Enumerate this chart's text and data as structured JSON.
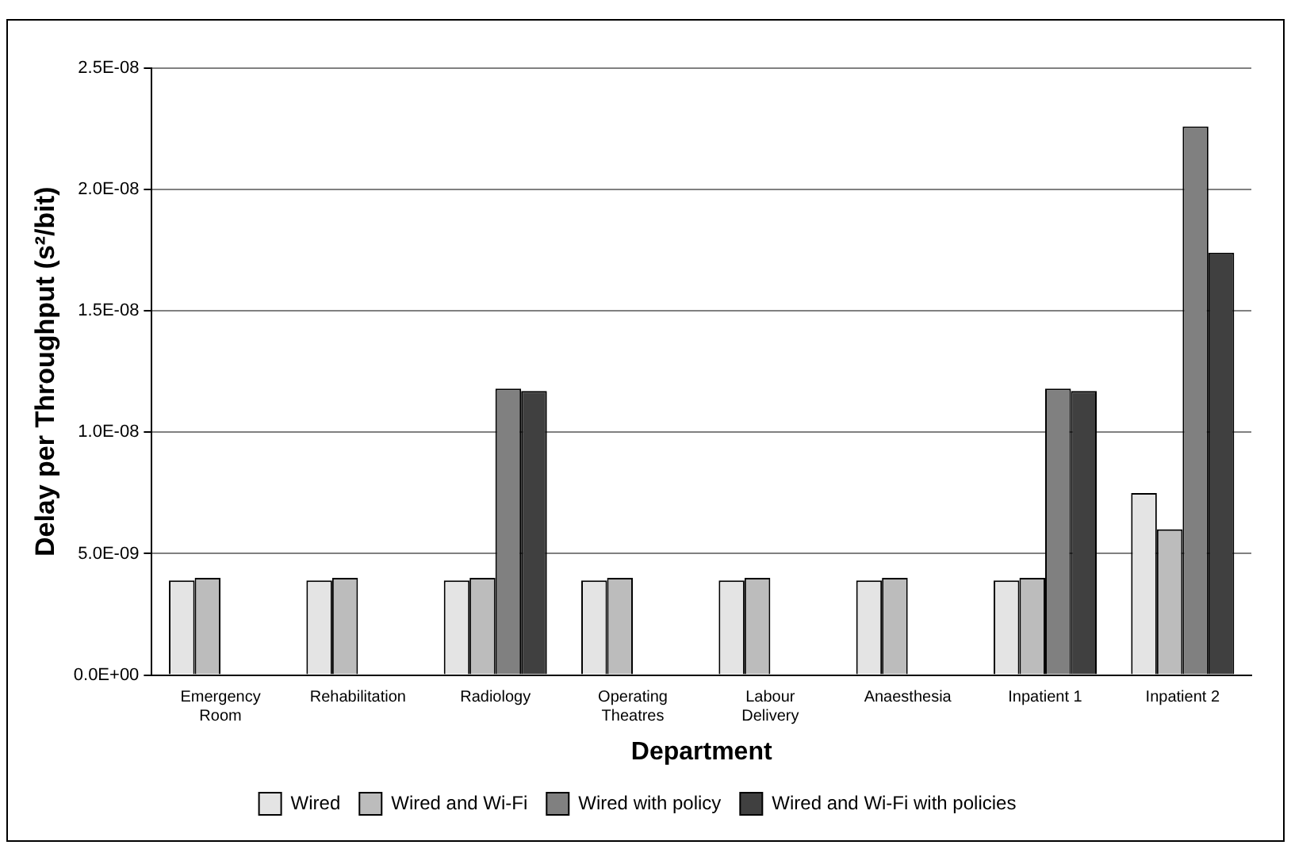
{
  "chart_data": {
    "type": "bar",
    "xlabel": "Department",
    "ylabel": "Delay per Throughput (s²/bit)",
    "categories": [
      "Emergency Room",
      "Rehabilitation",
      "Radiology",
      "Operating Theatres",
      "Labour Delivery",
      "Anaesthesia",
      "Inpatient 1",
      "Inpatient 2"
    ],
    "series": [
      {
        "name": "Wired",
        "color": "#e4e4e4",
        "values": [
          3.9e-09,
          3.9e-09,
          3.9e-09,
          3.9e-09,
          3.9e-09,
          3.9e-09,
          3.9e-09,
          7.5e-09
        ]
      },
      {
        "name": "Wired and Wi-Fi",
        "color": "#bcbcbc",
        "values": [
          4e-09,
          4e-09,
          4e-09,
          4e-09,
          4e-09,
          4e-09,
          4e-09,
          6e-09
        ]
      },
      {
        "name": "Wired with policy",
        "color": "#808080",
        "values": [
          null,
          null,
          1.18e-08,
          null,
          null,
          null,
          1.18e-08,
          2.26e-08
        ]
      },
      {
        "name": "Wired and Wi-Fi with policies",
        "color": "#404040",
        "values": [
          null,
          null,
          1.17e-08,
          null,
          null,
          null,
          1.17e-08,
          1.74e-08
        ]
      }
    ],
    "ylim": [
      0,
      2.5e-08
    ],
    "yticks": [
      {
        "value": 0,
        "label": "0.0E+00"
      },
      {
        "value": 5e-09,
        "label": "5.0E-09"
      },
      {
        "value": 1e-08,
        "label": "1.0E-08"
      },
      {
        "value": 1.5e-08,
        "label": "1.5E-08"
      },
      {
        "value": 2e-08,
        "label": "2.0E-08"
      },
      {
        "value": 2.5e-08,
        "label": "2.5E-08"
      }
    ],
    "grid": "y",
    "legend": "bottom"
  }
}
